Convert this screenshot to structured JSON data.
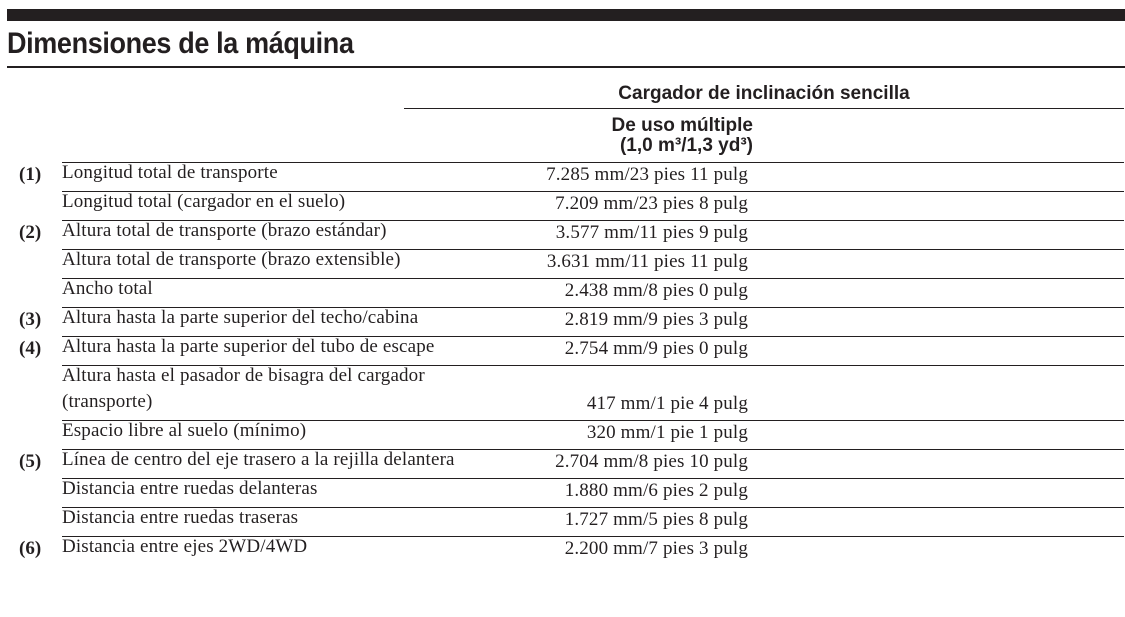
{
  "title": "Dimensiones de la máquina",
  "header": {
    "column_group": "Cargador de inclinación sencilla",
    "column_line1": "De uso múltiple",
    "column_line2": "(1,0 m³/1,3 yd³)"
  },
  "rows": [
    {
      "num": "(1)",
      "label": "Longitud total de transporte",
      "value": "7.285 mm/23 pies 11 pulg"
    },
    {
      "num": "",
      "label": "Longitud total (cargador en el suelo)",
      "value": "7.209 mm/23 pies 8 pulg"
    },
    {
      "num": "(2)",
      "label": "Altura total de transporte (brazo estándar)",
      "value": "3.577 mm/11 pies 9 pulg"
    },
    {
      "num": "",
      "label": "Altura total de transporte (brazo extensible)",
      "value": "3.631 mm/11 pies 11 pulg"
    },
    {
      "num": "",
      "label": "Ancho total",
      "value": "2.438 mm/8 pies 0 pulg"
    },
    {
      "num": "(3)",
      "label": "Altura hasta la parte superior del techo/cabina",
      "value": "2.819 mm/9 pies 3 pulg"
    },
    {
      "num": "(4)",
      "label": "Altura hasta la parte superior del tubo de escape",
      "value": "2.754 mm/9 pies 0 pulg"
    },
    {
      "num": "",
      "label_line1": "Altura hasta el pasador de bisagra del cargador",
      "label_line2": "(transporte)",
      "value": "417 mm/1 pie 4 pulg"
    },
    {
      "num": "",
      "label": "Espacio libre al suelo (mínimo)",
      "value": "320 mm/1 pie 1 pulg"
    },
    {
      "num": "(5)",
      "label": "Línea de centro del eje trasero a la rejilla delantera",
      "value": "2.704 mm/8 pies 10 pulg"
    },
    {
      "num": "",
      "label": "Distancia entre ruedas delanteras",
      "value": "1.880 mm/6 pies 2 pulg"
    },
    {
      "num": "",
      "label": "Distancia entre ruedas traseras",
      "value": "1.727 mm/5 pies 8 pulg"
    },
    {
      "num": "(6)",
      "label": "Distancia entre ejes 2WD/4WD",
      "value": "2.200 mm/7 pies 3 pulg"
    }
  ]
}
